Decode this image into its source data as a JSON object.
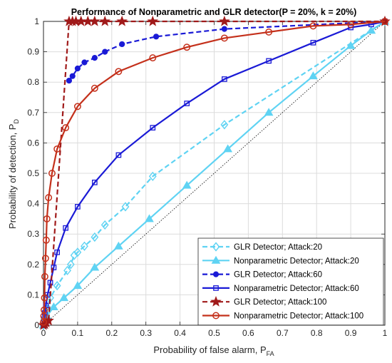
{
  "chart_data": {
    "type": "line",
    "title": "Performance of Nonparametric and GLR detector(P = 20%, k = 20%)",
    "xlabel": "Probability of false alarm, P",
    "xlabel_sub": "FA",
    "ylabel": "Probability of detection, P",
    "ylabel_sub": "D",
    "xlim": [
      0,
      1
    ],
    "ylim": [
      0,
      1
    ],
    "xticks": [
      "0",
      "0.1",
      "0.2",
      "0.3",
      "0.4",
      "0.5",
      "0.6",
      "0.7",
      "0.8",
      "0.9",
      "1"
    ],
    "yticks": [
      "0",
      "0.1",
      "0.2",
      "0.3",
      "0.4",
      "0.5",
      "0.6",
      "0.7",
      "0.8",
      "0.9",
      "1"
    ],
    "grid": true,
    "legend_position": "bottom-right",
    "reference_line": {
      "x": [
        0,
        1
      ],
      "y": [
        0,
        1
      ],
      "style": "dotted",
      "color": "#000000"
    },
    "series": [
      {
        "name": "GLR Detector; Attack:20",
        "color": "#5fd3f3",
        "line": "dashed",
        "marker": "diamond",
        "x": [
          0,
          0.002,
          0.005,
          0.01,
          0.02,
          0.04,
          0.07,
          0.08,
          0.09,
          0.1,
          0.12,
          0.15,
          0.18,
          0.24,
          0.32,
          0.53,
          1.0
        ],
        "y": [
          0,
          0.02,
          0.04,
          0.06,
          0.09,
          0.13,
          0.18,
          0.2,
          0.23,
          0.24,
          0.26,
          0.29,
          0.33,
          0.39,
          0.49,
          0.66,
          1.0
        ]
      },
      {
        "name": "Nonparametric Detector; Attack:20",
        "color": "#5fd3f3",
        "line": "solid",
        "marker": "triangle",
        "x": [
          0,
          0.01,
          0.03,
          0.06,
          0.1,
          0.15,
          0.22,
          0.31,
          0.42,
          0.54,
          0.66,
          0.79,
          0.9,
          0.96,
          1.0
        ],
        "y": [
          0,
          0.03,
          0.06,
          0.09,
          0.13,
          0.19,
          0.26,
          0.35,
          0.46,
          0.58,
          0.7,
          0.82,
          0.92,
          0.97,
          1.0
        ]
      },
      {
        "name": "GLR Detector; Attack:60",
        "color": "#1a1ad6",
        "line": "dashed",
        "marker": "circle-filled",
        "x": [
          0.075,
          0.085,
          0.1,
          0.12,
          0.15,
          0.18,
          0.23,
          0.33,
          0.53,
          1.0
        ],
        "y": [
          0.805,
          0.82,
          0.845,
          0.865,
          0.88,
          0.9,
          0.925,
          0.95,
          0.975,
          1.0
        ]
      },
      {
        "name": "Nonparametric Detector; Attack:60",
        "color": "#1a1ad6",
        "line": "solid",
        "marker": "square",
        "x": [
          0,
          0.002,
          0.004,
          0.007,
          0.012,
          0.02,
          0.03,
          0.04,
          0.065,
          0.1,
          0.15,
          0.22,
          0.32,
          0.42,
          0.53,
          0.66,
          0.79,
          0.9,
          0.96,
          1.0
        ],
        "y": [
          0,
          0.02,
          0.04,
          0.065,
          0.1,
          0.14,
          0.19,
          0.24,
          0.32,
          0.39,
          0.47,
          0.56,
          0.65,
          0.73,
          0.81,
          0.87,
          0.93,
          0.98,
          0.99,
          1.0
        ]
      },
      {
        "name": "GLR Detector; Attack:100",
        "color": "#a01a1a",
        "line": "dashed",
        "marker": "star",
        "x": [
          0,
          0.004,
          0.008,
          0.015,
          0.075,
          0.085,
          0.095,
          0.11,
          0.13,
          0.15,
          0.18,
          0.23,
          0.32,
          0.53,
          1.0
        ],
        "y": [
          0,
          0.003,
          0.008,
          0.015,
          1.0,
          1.0,
          1.0,
          1.0,
          1.0,
          1.0,
          1.0,
          1.0,
          1.0,
          1.0,
          1.0
        ]
      },
      {
        "name": "Nonparametric Detector; Attack:100",
        "color": "#c4301b",
        "line": "solid",
        "marker": "circle-open",
        "x": [
          0,
          0.001,
          0.002,
          0.003,
          0.004,
          0.006,
          0.008,
          0.01,
          0.015,
          0.025,
          0.04,
          0.065,
          0.1,
          0.15,
          0.22,
          0.32,
          0.42,
          0.53,
          0.66,
          0.79,
          0.9,
          1.0
        ],
        "y": [
          0.01,
          0.03,
          0.05,
          0.09,
          0.16,
          0.22,
          0.28,
          0.35,
          0.42,
          0.5,
          0.58,
          0.65,
          0.72,
          0.78,
          0.835,
          0.88,
          0.915,
          0.945,
          0.965,
          0.985,
          0.99,
          1.0
        ]
      }
    ]
  }
}
